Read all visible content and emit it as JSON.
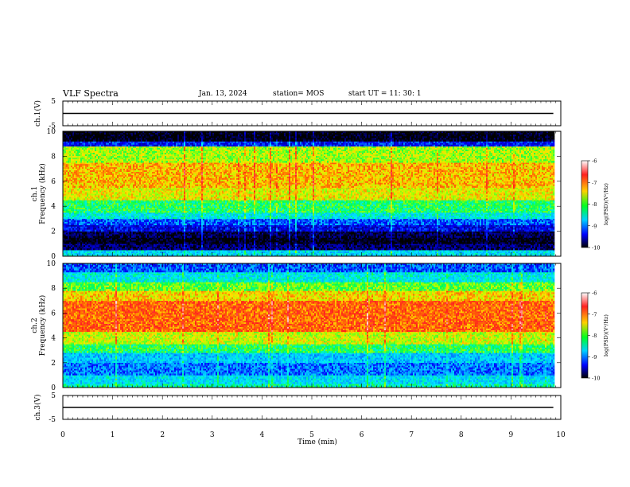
{
  "header": {
    "title": "VLF Spectra",
    "date": "Jan. 13, 2024",
    "station": "station= MOS",
    "start": "start  UT  =   11: 30: 1"
  },
  "colorbar": {
    "label": "log(PSD)(V²/Hz)",
    "ticks": [
      "-6",
      "-7",
      "-8",
      "-9",
      "-10"
    ],
    "colors": [
      "#ffffff",
      "#ff2020",
      "#ffd000",
      "#00ff20",
      "#00d0ff",
      "#0000ff",
      "#000000"
    ]
  },
  "chart_data": [
    {
      "type": "line",
      "ylabel": "ch.1(V)",
      "ylim": [
        -5,
        5
      ],
      "yticks": [
        "5",
        "-5"
      ],
      "xlim": [
        0,
        10
      ],
      "series": [
        {
          "x": [
            0,
            9.85
          ],
          "y": [
            0,
            0
          ]
        }
      ]
    },
    {
      "type": "heatmap",
      "ylabel": "ch.1",
      "ylabel2": "Frequency (kHz)",
      "ylim": [
        0,
        10
      ],
      "yticks": [
        "0",
        "2",
        "4",
        "6",
        "8",
        "10"
      ],
      "xlim": [
        0,
        10
      ],
      "data_extent_min": 9.85,
      "freq_bands_khz": [
        0,
        0.5,
        1.0,
        1.5,
        2.0,
        2.5,
        3.0,
        3.5,
        4.5,
        5.5,
        7.5,
        8.8,
        9.2,
        10
      ],
      "log_psd": [
        -8.5,
        -9.7,
        -10,
        -9.8,
        -9.3,
        -9.0,
        -8.4,
        -8.0,
        -7.4,
        -7.2,
        -7.6,
        -9.2,
        -10
      ]
    },
    {
      "type": "heatmap",
      "ylabel": "ch.2",
      "ylabel2": "Frequency (kHz)",
      "ylim": [
        0,
        10
      ],
      "yticks": [
        "0",
        "2",
        "4",
        "6",
        "8",
        "10"
      ],
      "xlim": [
        0,
        10
      ],
      "data_extent_min": 9.85,
      "freq_bands_khz": [
        0,
        0.3,
        1.0,
        2.0,
        2.8,
        3.5,
        4.5,
        7.0,
        7.8,
        8.5,
        9.3,
        10
      ],
      "log_psd": [
        -8.2,
        -8.5,
        -8.9,
        -8.6,
        -8.0,
        -7.5,
        -6.9,
        -7.3,
        -7.8,
        -8.4,
        -9.0
      ]
    },
    {
      "type": "line",
      "ylabel": "ch.3(V)",
      "ylim": [
        -5,
        5
      ],
      "yticks": [
        "5",
        "-5"
      ],
      "xlim": [
        0,
        10
      ],
      "series": [
        {
          "x": [
            0,
            9.85
          ],
          "y": [
            0,
            0
          ]
        }
      ]
    }
  ],
  "xaxis": {
    "label": "Time  (min)",
    "ticks": [
      "0",
      "1",
      "2",
      "3",
      "4",
      "5",
      "6",
      "7",
      "8",
      "9",
      "10"
    ]
  }
}
